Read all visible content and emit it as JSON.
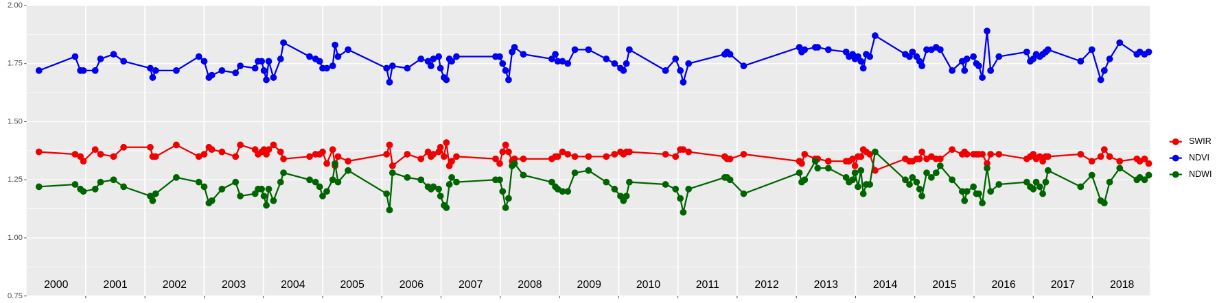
{
  "chart_data": {
    "type": "line",
    "x": [
      2000.21,
      2000.82,
      2000.91,
      2000.96,
      2001.16,
      2001.25,
      2001.47,
      2001.64,
      2002.09,
      2002.13,
      2002.18,
      2002.53,
      2002.91,
      2003.0,
      2003.08,
      2003.13,
      2003.3,
      2003.53,
      2003.61,
      2003.86,
      2003.91,
      2003.97,
      2004.01,
      2004.05,
      2004.09,
      2004.17,
      2004.29,
      2004.34,
      2004.78,
      2004.88,
      2004.95,
      2005.0,
      2005.07,
      2005.17,
      2005.21,
      2005.26,
      2005.43,
      2006.08,
      2006.13,
      2006.18,
      2006.43,
      2006.66,
      2006.78,
      2006.83,
      2006.87,
      2006.96,
      2006.99,
      2007.05,
      2007.09,
      2007.14,
      2007.18,
      2007.26,
      2007.92,
      2007.99,
      2008.04,
      2008.09,
      2008.14,
      2008.2,
      2008.24,
      2008.39,
      2008.87,
      2008.93,
      2008.97,
      2009.05,
      2009.14,
      2009.26,
      2009.49,
      2009.79,
      2009.93,
      2010.03,
      2010.08,
      2010.13,
      2010.18,
      2010.79,
      2010.96,
      2011.04,
      2011.09,
      2011.18,
      2011.79,
      2011.83,
      2011.88,
      2012.11,
      2013.05,
      2013.09,
      2013.14,
      2013.32,
      2013.36,
      2013.54,
      2013.84,
      2013.89,
      2013.95,
      2013.99,
      2014.04,
      2014.09,
      2014.13,
      2014.18,
      2014.24,
      2014.33,
      2014.84,
      2014.91,
      2014.96,
      2015.03,
      2015.08,
      2015.12,
      2015.2,
      2015.28,
      2015.36,
      2015.43,
      2015.63,
      2015.8,
      2015.84,
      2015.88,
      2015.99,
      2016.04,
      2016.08,
      2016.14,
      2016.22,
      2016.28,
      2016.42,
      2016.89,
      2016.95,
      2017.0,
      2017.05,
      2017.11,
      2017.16,
      2017.21,
      2017.25,
      2017.8,
      2017.99,
      2018.14,
      2018.2,
      2018.29,
      2018.46,
      2018.75,
      2018.8,
      2018.88,
      2018.95
    ],
    "series": [
      {
        "name": "SWIR",
        "color": "#f00000",
        "values": [
          1.37,
          1.36,
          1.35,
          1.33,
          1.38,
          1.36,
          1.35,
          1.39,
          1.39,
          1.35,
          1.35,
          1.4,
          1.35,
          1.36,
          1.39,
          1.38,
          1.37,
          1.35,
          1.4,
          1.38,
          1.36,
          1.37,
          1.38,
          1.36,
          1.38,
          1.4,
          1.37,
          1.34,
          1.35,
          1.36,
          1.36,
          1.37,
          1.32,
          1.38,
          1.31,
          1.35,
          1.33,
          1.36,
          1.4,
          1.31,
          1.36,
          1.34,
          1.37,
          1.35,
          1.36,
          1.37,
          1.39,
          1.35,
          1.41,
          1.31,
          1.33,
          1.35,
          1.34,
          1.32,
          1.37,
          1.4,
          1.37,
          1.33,
          1.34,
          1.34,
          1.34,
          1.35,
          1.35,
          1.37,
          1.36,
          1.35,
          1.35,
          1.35,
          1.36,
          1.37,
          1.36,
          1.37,
          1.37,
          1.36,
          1.35,
          1.38,
          1.38,
          1.37,
          1.35,
          1.34,
          1.34,
          1.36,
          1.33,
          1.32,
          1.36,
          1.34,
          1.34,
          1.33,
          1.33,
          1.33,
          1.34,
          1.31,
          1.35,
          1.35,
          1.38,
          1.37,
          1.36,
          1.29,
          1.34,
          1.33,
          1.33,
          1.34,
          1.34,
          1.37,
          1.34,
          1.35,
          1.34,
          1.34,
          1.38,
          1.36,
          1.37,
          1.36,
          1.36,
          1.36,
          1.36,
          1.36,
          1.32,
          1.36,
          1.36,
          1.34,
          1.35,
          1.36,
          1.34,
          1.35,
          1.33,
          1.35,
          1.35,
          1.36,
          1.33,
          1.35,
          1.38,
          1.35,
          1.33,
          1.34,
          1.33,
          1.34,
          1.32
        ]
      },
      {
        "name": "NDVI",
        "color": "#0000f0",
        "values": [
          1.72,
          1.78,
          1.72,
          1.72,
          1.72,
          1.77,
          1.79,
          1.76,
          1.73,
          1.69,
          1.72,
          1.72,
          1.78,
          1.76,
          1.69,
          1.7,
          1.72,
          1.71,
          1.74,
          1.73,
          1.76,
          1.76,
          1.72,
          1.68,
          1.76,
          1.69,
          1.77,
          1.84,
          1.78,
          1.77,
          1.76,
          1.73,
          1.73,
          1.74,
          1.83,
          1.78,
          1.81,
          1.73,
          1.67,
          1.74,
          1.73,
          1.77,
          1.76,
          1.74,
          1.77,
          1.78,
          1.73,
          1.69,
          1.68,
          1.77,
          1.76,
          1.78,
          1.78,
          1.78,
          1.75,
          1.72,
          1.68,
          1.8,
          1.82,
          1.79,
          1.77,
          1.79,
          1.76,
          1.76,
          1.75,
          1.81,
          1.81,
          1.77,
          1.75,
          1.73,
          1.72,
          1.75,
          1.81,
          1.72,
          1.77,
          1.72,
          1.67,
          1.75,
          1.79,
          1.8,
          1.79,
          1.74,
          1.82,
          1.8,
          1.81,
          1.82,
          1.82,
          1.81,
          1.8,
          1.78,
          1.79,
          1.77,
          1.78,
          1.76,
          1.73,
          1.79,
          1.78,
          1.87,
          1.79,
          1.78,
          1.8,
          1.78,
          1.76,
          1.74,
          1.81,
          1.81,
          1.82,
          1.81,
          1.72,
          1.76,
          1.72,
          1.77,
          1.78,
          1.75,
          1.74,
          1.69,
          1.89,
          1.72,
          1.78,
          1.8,
          1.76,
          1.77,
          1.79,
          1.78,
          1.79,
          1.8,
          1.81,
          1.76,
          1.81,
          1.68,
          1.72,
          1.77,
          1.84,
          1.79,
          1.8,
          1.79,
          1.8
        ]
      },
      {
        "name": "NDWI",
        "color": "#006400",
        "values": [
          1.22,
          1.23,
          1.21,
          1.2,
          1.21,
          1.24,
          1.25,
          1.22,
          1.18,
          1.16,
          1.19,
          1.26,
          1.24,
          1.22,
          1.15,
          1.16,
          1.21,
          1.24,
          1.18,
          1.19,
          1.21,
          1.21,
          1.18,
          1.14,
          1.21,
          1.16,
          1.24,
          1.28,
          1.25,
          1.24,
          1.22,
          1.18,
          1.2,
          1.25,
          1.32,
          1.24,
          1.29,
          1.19,
          1.12,
          1.28,
          1.26,
          1.25,
          1.22,
          1.21,
          1.22,
          1.21,
          1.18,
          1.14,
          1.13,
          1.23,
          1.26,
          1.24,
          1.25,
          1.25,
          1.2,
          1.13,
          1.17,
          1.31,
          1.32,
          1.27,
          1.24,
          1.22,
          1.21,
          1.2,
          1.2,
          1.28,
          1.29,
          1.24,
          1.21,
          1.18,
          1.16,
          1.18,
          1.24,
          1.23,
          1.21,
          1.17,
          1.11,
          1.21,
          1.26,
          1.26,
          1.25,
          1.19,
          1.28,
          1.24,
          1.25,
          1.33,
          1.3,
          1.3,
          1.26,
          1.24,
          1.25,
          1.28,
          1.22,
          1.29,
          1.19,
          1.23,
          1.23,
          1.37,
          1.25,
          1.23,
          1.26,
          1.24,
          1.21,
          1.18,
          1.28,
          1.26,
          1.28,
          1.31,
          1.25,
          1.2,
          1.16,
          1.2,
          1.22,
          1.19,
          1.19,
          1.15,
          1.3,
          1.2,
          1.23,
          1.24,
          1.22,
          1.21,
          1.24,
          1.22,
          1.19,
          1.24,
          1.29,
          1.22,
          1.27,
          1.16,
          1.15,
          1.24,
          1.3,
          1.25,
          1.26,
          1.25,
          1.27
        ]
      }
    ],
    "xlim": [
      2000,
      2018.97
    ],
    "xticks": [
      2001,
      2002,
      2003,
      2004,
      2005,
      2006,
      2007,
      2008,
      2009,
      2010,
      2011,
      2012,
      2013,
      2014,
      2015,
      2016,
      2017,
      2018
    ],
    "year_labels": [
      "2000",
      "2001",
      "2002",
      "2003",
      "2004",
      "2005",
      "2006",
      "2007",
      "2008",
      "2009",
      "2010",
      "2011",
      "2012",
      "2013",
      "2014",
      "2015",
      "2016",
      "2017",
      "2018"
    ],
    "ylim": [
      0.75,
      2.0
    ],
    "yticks": [
      0.75,
      {
        "value": 1.0,
        "label": "1.00"
      },
      1.25,
      {
        "value": 1.5,
        "label": "1.50"
      },
      1.75,
      {
        "value": 2.0,
        "label": "2.00"
      }
    ],
    "grid": true,
    "legend": "right"
  }
}
